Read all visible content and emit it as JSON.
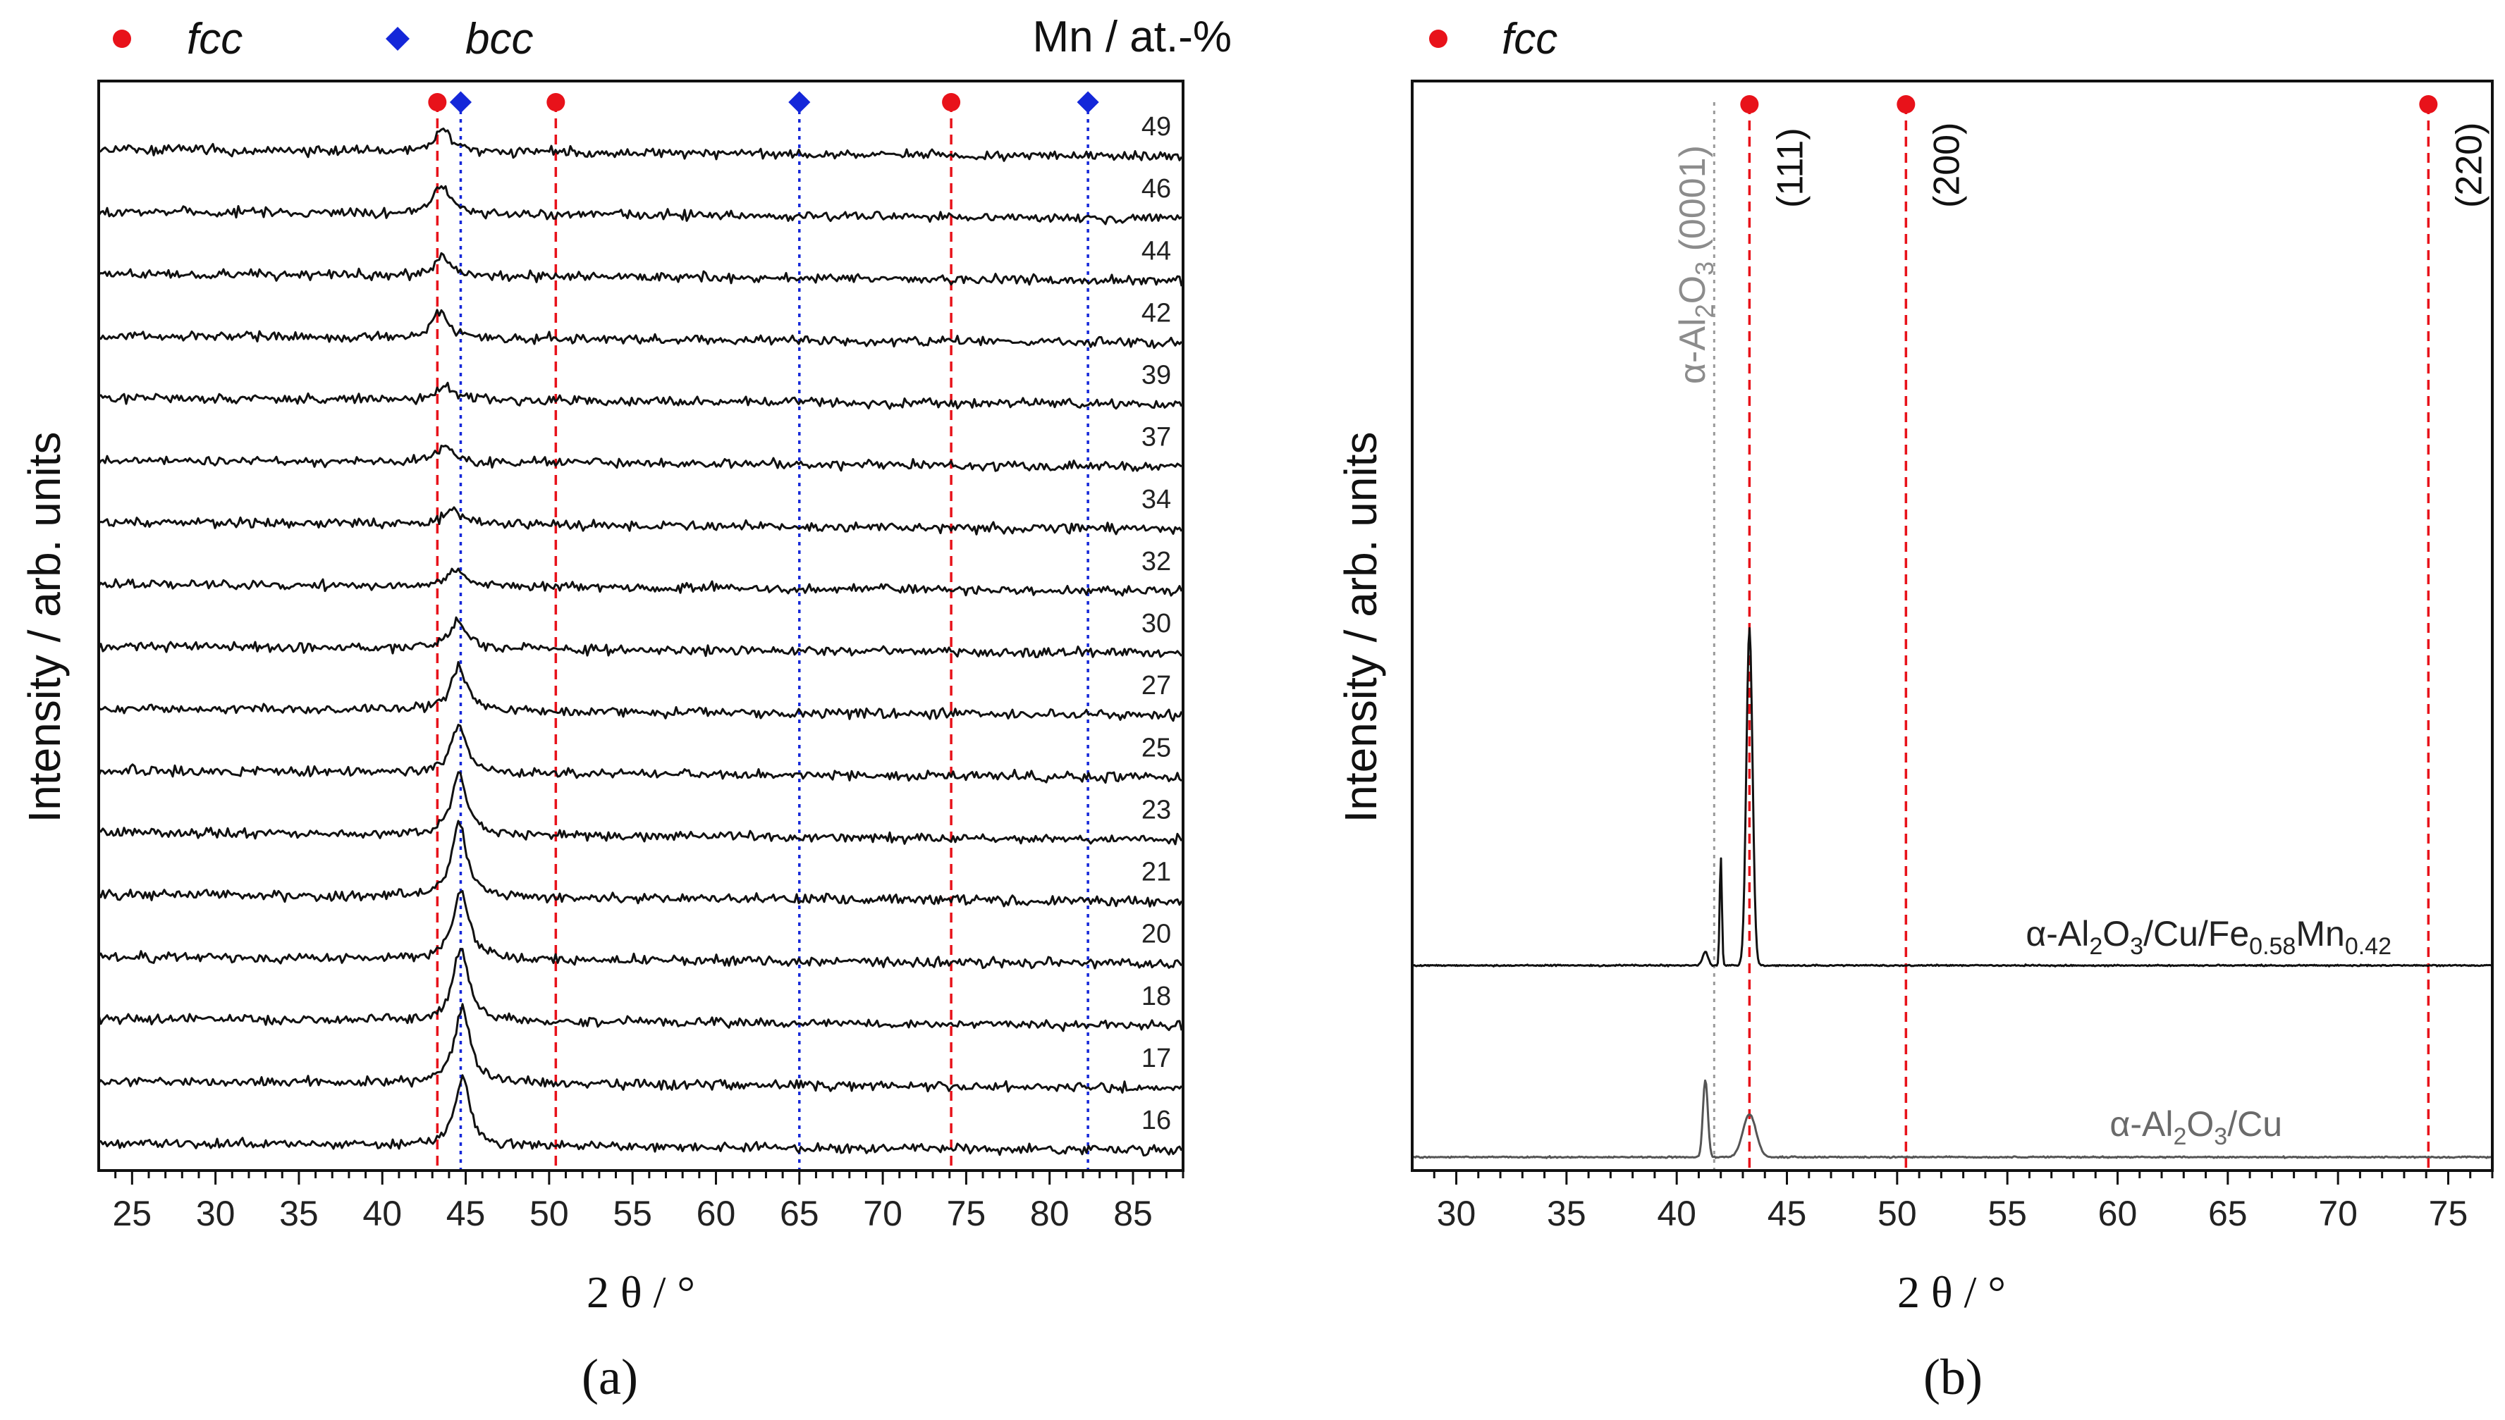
{
  "chart_data": [
    {
      "panel": "a",
      "type": "line",
      "panel_label": "(a)",
      "xlabel": "2 θ / °",
      "ylabel": "Intensity / arb. units",
      "xlim": [
        23,
        88
      ],
      "xticks": [
        25,
        30,
        35,
        40,
        45,
        50,
        55,
        60,
        65,
        70,
        75,
        80,
        85
      ],
      "legend": [
        {
          "marker": "circle",
          "color": "#e8121a",
          "label": "fcc"
        },
        {
          "marker": "diamond",
          "color": "#1427d9",
          "label": "bcc"
        }
      ],
      "series_header": "Mn / at.-%",
      "series_labels": [
        "49",
        "46",
        "44",
        "42",
        "39",
        "37",
        "34",
        "32",
        "30",
        "27",
        "25",
        "23",
        "21",
        "20",
        "18",
        "17",
        "16"
      ],
      "series_peaks": [
        {
          "mn": 49,
          "pos": 43.6,
          "height": 0.38
        },
        {
          "mn": 46,
          "pos": 43.6,
          "height": 0.42
        },
        {
          "mn": 44,
          "pos": 43.6,
          "height": 0.3
        },
        {
          "mn": 42,
          "pos": 43.5,
          "height": 0.4
        },
        {
          "mn": 39,
          "pos": 43.8,
          "height": 0.22
        },
        {
          "mn": 37,
          "pos": 43.8,
          "height": 0.26
        },
        {
          "mn": 34,
          "pos": 44.2,
          "height": 0.24
        },
        {
          "mn": 32,
          "pos": 44.5,
          "height": 0.26
        },
        {
          "mn": 30,
          "pos": 44.6,
          "height": 0.45
        },
        {
          "mn": 27,
          "pos": 44.6,
          "height": 0.68
        },
        {
          "mn": 25,
          "pos": 44.6,
          "height": 0.72
        },
        {
          "mn": 23,
          "pos": 44.6,
          "height": 0.92
        },
        {
          "mn": 21,
          "pos": 44.6,
          "height": 1.1
        },
        {
          "mn": 20,
          "pos": 44.7,
          "height": 1.05
        },
        {
          "mn": 18,
          "pos": 44.7,
          "height": 1.1
        },
        {
          "mn": 17,
          "pos": 44.8,
          "height": 1.15
        },
        {
          "mn": 16,
          "pos": 44.8,
          "height": 1.0
        }
      ],
      "reference_lines": {
        "fcc": [
          43.3,
          50.4,
          74.1
        ],
        "bcc": [
          44.7,
          65.0,
          82.3
        ]
      }
    },
    {
      "panel": "b",
      "type": "line",
      "panel_label": "(b)",
      "xlabel": "2 θ / °",
      "ylabel": "Intensity / arb. units",
      "xlim": [
        28,
        77
      ],
      "xticks": [
        30,
        35,
        40,
        45,
        50,
        55,
        60,
        65,
        70,
        75
      ],
      "legend": [
        {
          "marker": "circle",
          "color": "#e8121a",
          "label": "fcc"
        }
      ],
      "reference_lines": {
        "fcc": [
          {
            "pos": 43.3,
            "hkl": "(111)"
          },
          {
            "pos": 50.4,
            "hkl": "(200)"
          },
          {
            "pos": 74.1,
            "hkl": "(220)"
          }
        ],
        "substrate": {
          "pos": 41.7,
          "label_prefix": "α-Al",
          "sub1": "2",
          "mid": "O",
          "sub2": "3",
          "label_suffix": " (0001)"
        }
      },
      "series": [
        {
          "name_parts": [
            "α-Al",
            "2",
            "O",
            "3",
            "/Cu/Fe",
            "0.58",
            "Mn",
            "0.42"
          ],
          "peaks": [
            {
              "pos": 41.3,
              "height": 0.18,
              "width": 0.12
            },
            {
              "pos": 42.0,
              "height": 1.4,
              "width": 0.05
            },
            {
              "pos": 43.3,
              "height": 4.35,
              "width": 0.14
            }
          ]
        },
        {
          "name_parts": [
            "α-Al",
            "2",
            "O",
            "3",
            "/Cu"
          ],
          "peaks": [
            {
              "pos": 41.3,
              "height": 1.0,
              "width": 0.11
            },
            {
              "pos": 43.3,
              "height": 0.55,
              "width": 0.3
            }
          ]
        }
      ]
    }
  ]
}
